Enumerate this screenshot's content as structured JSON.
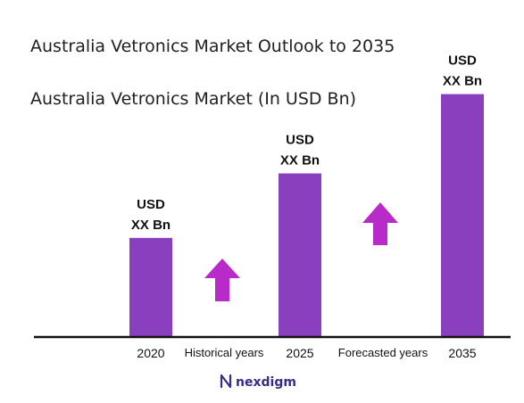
{
  "chart_data": {
    "type": "bar",
    "title": "Australia Vetronics Market Outlook to 2035",
    "subtitle": "Australia Vetronics Market (In USD Bn)",
    "categories": [
      "2020",
      "2025",
      "2035"
    ],
    "values": [
      1.0,
      1.65,
      2.45
    ],
    "value_labels": [
      {
        "line1": "USD",
        "line2": "XX Bn"
      },
      {
        "line1": "USD",
        "line2": "XX Bn"
      },
      {
        "line1": "USD",
        "line2": "XX Bn"
      }
    ],
    "period_labels": [
      "Historical years",
      "Forecasted years"
    ],
    "ylim": [
      0,
      2.5
    ],
    "grid": false,
    "legend": "none",
    "colors": {
      "bar": "#8a3fbf",
      "arrow": "#b82bc9",
      "axis": "#111111"
    }
  },
  "brand": {
    "name": "nexdigm",
    "icon": "nexdigm-logo-icon",
    "color": "#3a2a8a"
  }
}
